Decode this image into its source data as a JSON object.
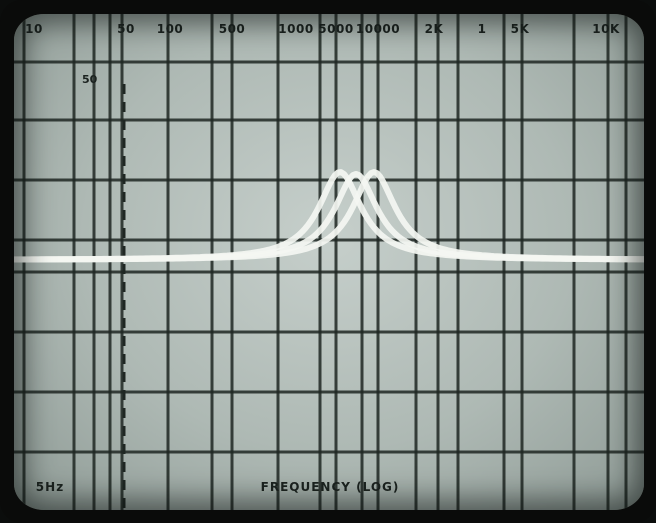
{
  "scope": {
    "top_scale_labels": [
      "10",
      "50",
      "100",
      "500",
      "1000",
      "5000",
      "10000",
      "2K",
      "1",
      "5K",
      "10K"
    ],
    "marker_label": "50",
    "bottom_left_label": "5Hz",
    "bottom_axis_label": "FREQUENCY (LOG)",
    "trace_color": "#f4f6f2",
    "grid_color": "#1f2723",
    "screen_color": "#b4bfba",
    "trace_count": 3
  }
}
